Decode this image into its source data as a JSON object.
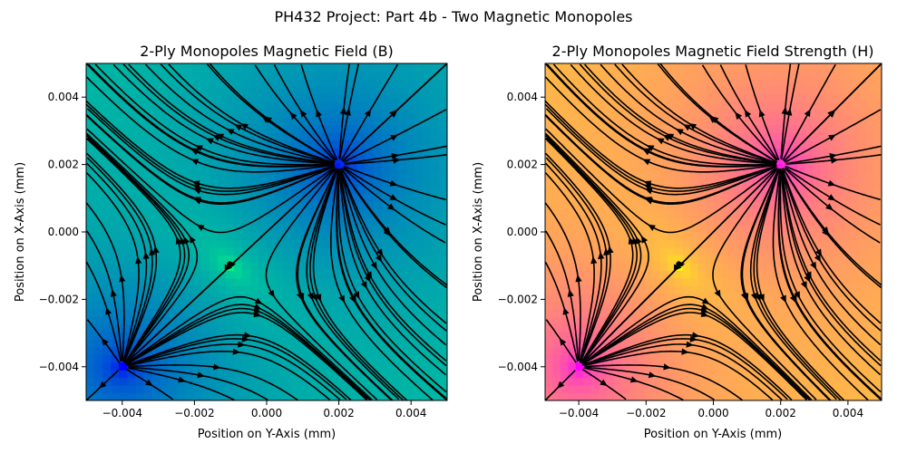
{
  "figure": {
    "suptitle": "PH432 Project: Part 4b - Two Magnetic Monopoles"
  },
  "chart_data": [
    {
      "type": "streamplot",
      "title": "2-Ply Monopoles Magnetic Field (B)",
      "xlabel": "Position on Y-Axis (mm)",
      "ylabel": "Position on X-Axis (mm)",
      "xlim": [
        -0.005,
        0.005
      ],
      "ylim": [
        -0.005,
        0.005
      ],
      "xticks": [
        -0.004,
        -0.002,
        0.0,
        0.002,
        0.004
      ],
      "yticks": [
        -0.004,
        -0.002,
        0.0,
        0.002,
        0.004
      ],
      "xtick_labels": [
        "−0.004",
        "−0.002",
        "0.000",
        "0.002",
        "0.004"
      ],
      "ytick_labels": [
        "−0.004",
        "−0.002",
        "0.000",
        "0.002",
        "0.004"
      ],
      "colormap": "winter",
      "colormap_colors": [
        "#0000ff",
        "#00ff80"
      ],
      "monopoles": [
        {
          "x": 0.002,
          "y": 0.002
        },
        {
          "x": -0.004,
          "y": -0.004
        }
      ],
      "field_minimum": {
        "x": -0.001,
        "y": -0.001
      },
      "grid": false,
      "legend": "none"
    },
    {
      "type": "streamplot",
      "title": "2-Ply Monopoles Magnetic Field Strength (H)",
      "xlabel": "Position on Y-Axis (mm)",
      "ylabel": "Position on X-Axis (mm)",
      "xlim": [
        -0.005,
        0.005
      ],
      "ylim": [
        -0.005,
        0.005
      ],
      "xticks": [
        -0.004,
        -0.002,
        0.0,
        0.002,
        0.004
      ],
      "yticks": [
        -0.004,
        -0.002,
        0.0,
        0.002,
        0.004
      ],
      "xtick_labels": [
        "−0.004",
        "−0.002",
        "0.000",
        "0.002",
        "0.004"
      ],
      "ytick_labels": [
        "−0.004",
        "−0.002",
        "0.000",
        "0.002",
        "0.004"
      ],
      "colormap": "spring",
      "colormap_colors": [
        "#ff00ff",
        "#ffff00"
      ],
      "monopoles": [
        {
          "x": 0.002,
          "y": 0.002
        },
        {
          "x": -0.004,
          "y": -0.004
        }
      ],
      "field_minimum": {
        "x": -0.001,
        "y": -0.001
      },
      "grid": false,
      "legend": "none"
    }
  ]
}
